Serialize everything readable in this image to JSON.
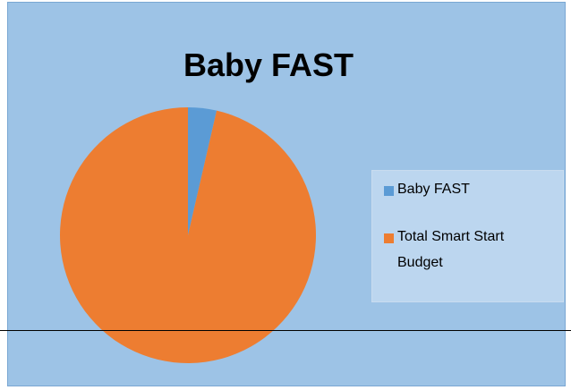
{
  "chart_data": {
    "type": "pie",
    "title": "Baby FAST",
    "categories": [
      "Baby FAST",
      "Total Smart Start Budget"
    ],
    "values": [
      3.6,
      96.4
    ],
    "colors": [
      "#5b9bd5",
      "#ed7d31"
    ],
    "legend": "right"
  }
}
